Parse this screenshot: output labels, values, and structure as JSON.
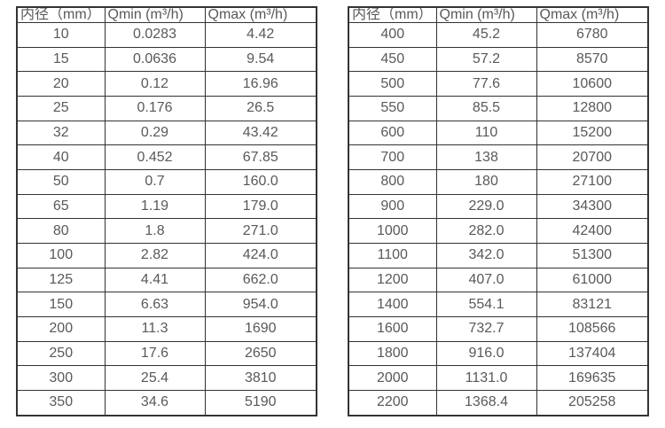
{
  "page": {
    "background": "#ffffff",
    "text_color": "#595959",
    "border_color": "#333333"
  },
  "tables": [
    {
      "name": "flow-table-small-diameters",
      "headers": [
        "内径（mm）",
        "Qmin (m³/h)",
        "Qmax (m³/h)"
      ],
      "rows": [
        [
          "10",
          "0.0283",
          "4.42"
        ],
        [
          "15",
          "0.0636",
          "9.54"
        ],
        [
          "20",
          "0.12",
          "16.96"
        ],
        [
          "25",
          "0.176",
          "26.5"
        ],
        [
          "32",
          "0.29",
          "43.42"
        ],
        [
          "40",
          "0.452",
          "67.85"
        ],
        [
          "50",
          "0.7",
          "160.0"
        ],
        [
          "65",
          "1.19",
          "179.0"
        ],
        [
          "80",
          "1.8",
          "271.0"
        ],
        [
          "100",
          "2.82",
          "424.0"
        ],
        [
          "125",
          "4.41",
          "662.0"
        ],
        [
          "150",
          "6.63",
          "954.0"
        ],
        [
          "200",
          "11.3",
          "1690"
        ],
        [
          "250",
          "17.6",
          "2650"
        ],
        [
          "300",
          "25.4",
          "3810"
        ],
        [
          "350",
          "34.6",
          "5190"
        ]
      ]
    },
    {
      "name": "flow-table-large-diameters",
      "headers": [
        "内径（mm）",
        "Qmin (m³/h)",
        "Qmax (m³/h)"
      ],
      "rows": [
        [
          "400",
          "45.2",
          "6780"
        ],
        [
          "450",
          "57.2",
          "8570"
        ],
        [
          "500",
          "77.6",
          "10600"
        ],
        [
          "550",
          "85.5",
          "12800"
        ],
        [
          "600",
          "110",
          "15200"
        ],
        [
          "700",
          "138",
          "20700"
        ],
        [
          "800",
          "180",
          "27100"
        ],
        [
          "900",
          "229.0",
          "34300"
        ],
        [
          "1000",
          "282.0",
          "42400"
        ],
        [
          "1100",
          "342.0",
          "51300"
        ],
        [
          "1200",
          "407.0",
          "61000"
        ],
        [
          "1400",
          "554.1",
          "83121"
        ],
        [
          "1600",
          "732.7",
          "108566"
        ],
        [
          "1800",
          "916.0",
          "137404"
        ],
        [
          "2000",
          "1131.0",
          "169635"
        ],
        [
          "2200",
          "1368.4",
          "205258"
        ]
      ]
    }
  ]
}
